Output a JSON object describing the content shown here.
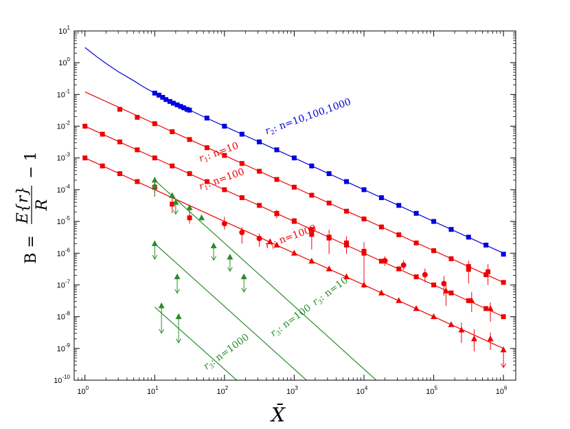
{
  "chart_data": {
    "type": "scatter",
    "title": "",
    "xlabel": "X̄",
    "ylabel": {
      "prefix": "B = ",
      "numerator": "E{r}",
      "denominator": "R",
      "suffix": "− 1"
    },
    "xscale": "log",
    "yscale": "log",
    "xlim": [
      0.7,
      1500000
    ],
    "ylim": [
      1e-10,
      10
    ],
    "x_ticks": [
      {
        "value": 1,
        "base": "10",
        "exp": "0"
      },
      {
        "value": 10,
        "base": "10",
        "exp": "1"
      },
      {
        "value": 100,
        "base": "10",
        "exp": "2"
      },
      {
        "value": 1000,
        "base": "10",
        "exp": "3"
      },
      {
        "value": 10000,
        "base": "10",
        "exp": "4"
      },
      {
        "value": 100000,
        "base": "10",
        "exp": "5"
      },
      {
        "value": 1000000,
        "base": "10",
        "exp": "6"
      }
    ],
    "y_ticks": [
      {
        "value": 1e-10,
        "base": "10",
        "exp": "-10"
      },
      {
        "value": 1e-09,
        "base": "10",
        "exp": "-9"
      },
      {
        "value": 1e-08,
        "base": "10",
        "exp": "-8"
      },
      {
        "value": 1e-07,
        "base": "10",
        "exp": "-7"
      },
      {
        "value": 1e-06,
        "base": "10",
        "exp": "-6"
      },
      {
        "value": 1e-05,
        "base": "10",
        "exp": "-5"
      },
      {
        "value": 0.0001,
        "base": "10",
        "exp": "-4"
      },
      {
        "value": 0.001,
        "base": "10",
        "exp": "-3"
      },
      {
        "value": 0.01,
        "base": "10",
        "exp": "-2"
      },
      {
        "value": 0.1,
        "base": "10",
        "exp": "-1"
      },
      {
        "value": 1,
        "base": "10",
        "exp": "0"
      },
      {
        "value": 10,
        "base": "10",
        "exp": "1"
      }
    ],
    "colors": {
      "blue": "#0000dd",
      "red": "#ee0000",
      "green": "#2a8c2a"
    },
    "series": [
      {
        "group": "r2",
        "color": "blue",
        "label": {
          "sym": "r",
          "sub": "2",
          "text": ": n=10,100,1000",
          "x": 400,
          "y": 0.0055,
          "angle": -19.5
        },
        "lines": [
          {
            "points": [
              [
                1,
                3.0
              ],
              [
                1.5,
                1.5
              ],
              [
                2,
                0.95
              ],
              [
                3,
                0.52
              ],
              [
                5,
                0.27
              ],
              [
                7,
                0.17
              ],
              [
                10,
                0.11
              ],
              [
                20,
                0.052
              ],
              [
                50,
                0.02
              ],
              [
                100,
                0.01
              ],
              [
                1000,
                0.001
              ],
              [
                10000,
                0.0001
              ],
              [
                100000,
                1e-05
              ],
              [
                1000000,
                1e-06
              ]
            ]
          }
        ],
        "markers": {
          "shape": "square",
          "points": [
            [
              10,
              0.11
            ],
            [
              11.5,
              0.095
            ],
            [
              13,
              0.081
            ],
            [
              14.5,
              0.069
            ],
            [
              16.5,
              0.06
            ],
            [
              18.5,
              0.053
            ],
            [
              21,
              0.047
            ],
            [
              23.5,
              0.042
            ],
            [
              26,
              0.038
            ],
            [
              29,
              0.034
            ],
            [
              31.5,
              0.032
            ],
            [
              56,
              0.018
            ],
            [
              100,
              0.01
            ],
            [
              178,
              0.0056
            ],
            [
              316,
              0.0032
            ],
            [
              562,
              0.0018
            ],
            [
              1000,
              0.001
            ],
            [
              1780,
              0.00056
            ],
            [
              3160,
              0.00032
            ],
            [
              5620,
              0.00018
            ],
            [
              10000,
              0.0001
            ],
            [
              17800,
              5.6e-05
            ],
            [
              31600,
              3.2e-05
            ],
            [
              56200,
              1.8e-05
            ],
            [
              100000,
              1e-05
            ],
            [
              178000,
              5.6e-06
            ],
            [
              316000,
              3.2e-06
            ],
            [
              562000,
              1.8e-06
            ],
            [
              1000000,
              9.3e-07
            ]
          ]
        }
      },
      {
        "group": "r1_n10",
        "color": "red",
        "label": {
          "sym": "r",
          "sub": "1",
          "text": ": n=10",
          "x": 45,
          "y": 0.00075,
          "angle": -19.5
        },
        "lines": [
          {
            "points": [
              [
                1,
                0.12
              ],
              [
                1000000,
                1.2e-07
              ]
            ]
          }
        ],
        "markers": {
          "shape": "square",
          "points": [
            [
              3.16,
              0.034
            ],
            [
              5.62,
              0.019
            ],
            [
              10,
              0.012
            ],
            [
              17.8,
              0.0067
            ],
            [
              31.6,
              0.0038
            ],
            [
              56.2,
              0.0021
            ],
            [
              100,
              0.0012
            ],
            [
              178,
              0.00067
            ],
            [
              316,
              0.00038
            ],
            [
              562,
              0.00021
            ],
            [
              1000,
              0.00012
            ],
            [
              1780,
              6.7e-05
            ],
            [
              3160,
              3.8e-05
            ],
            [
              5620,
              2.1e-05
            ],
            [
              10000,
              1.2e-05
            ],
            [
              17800,
              6.7e-06
            ],
            [
              31600,
              3.8e-06
            ],
            [
              56200,
              2.1e-06
            ],
            [
              100000,
              1.2e-06
            ],
            [
              178000,
              6.7e-07
            ],
            [
              316000,
              3.8e-07
            ],
            [
              562000,
              2.1e-07
            ],
            [
              1000000,
              1.2e-07
            ]
          ]
        }
      },
      {
        "group": "r1_n100",
        "color": "red",
        "label": {
          "sym": "r",
          "sub": "1",
          "text": ": n=100",
          "x": 45,
          "y": 9.8e-05,
          "angle": -19.5
        },
        "lines": [
          {
            "points": [
              [
                1,
                0.01
              ],
              [
                1000000,
                1e-08
              ]
            ]
          }
        ],
        "markers": {
          "shape": "square",
          "points": [
            [
              1,
              0.01
            ],
            [
              1.78,
              0.0056
            ],
            [
              3.16,
              0.0032
            ],
            [
              5.62,
              0.0018
            ],
            [
              10,
              0.001
            ],
            [
              17.8,
              0.00056
            ],
            [
              31.6,
              0.00032
            ],
            [
              56.2,
              0.00018
            ],
            [
              100,
              0.0001
            ],
            [
              178,
              5.6e-05
            ],
            [
              316,
              3.2e-05
            ],
            [
              562,
              1.8e-05
            ],
            [
              1000,
              1e-05
            ],
            [
              1780,
              5.6e-06
            ],
            [
              3160,
              3.2e-06
            ],
            [
              5620,
              1.8e-06
            ],
            [
              10000,
              1e-06
            ],
            [
              17800,
              5.6e-07
            ],
            [
              31600,
              3.2e-07
            ],
            [
              56200,
              1.8e-07
            ],
            [
              100000,
              1e-07
            ],
            [
              178000,
              5.6e-08
            ],
            [
              316000,
              3.2e-08
            ],
            [
              562000,
              1.8e-08
            ],
            [
              1000000,
              1e-08
            ]
          ]
        }
      },
      {
        "group": "r1_n1000",
        "color": "red",
        "label": {
          "sym": "r",
          "sub": "1",
          "text": ": n=1000",
          "x": 400,
          "y": 1.4e-06,
          "angle": -19.5
        },
        "lines": [
          {
            "points": [
              [
                1,
                0.001
              ],
              [
                1000000,
                1e-09
              ]
            ]
          }
        ],
        "markers": {
          "shape": "square",
          "points": [
            [
              1,
              0.001
            ],
            [
              1.78,
              0.00056
            ],
            [
              3.16,
              0.00032
            ],
            [
              5.62,
              0.00018
            ]
          ]
        },
        "markers_triangle": {
          "shape": "triangle",
          "points": [
            [
              450,
              2.3e-06
            ],
            [
              562,
              1.8e-06
            ],
            [
              1000,
              1e-06
            ],
            [
              1780,
              5.6e-07
            ],
            [
              3160,
              3.2e-07
            ],
            [
              5620,
              1.8e-07
            ],
            [
              10000,
              1e-07
            ],
            [
              17800,
              5.6e-08
            ],
            [
              31600,
              3.2e-08
            ],
            [
              56200,
              1.8e-08
            ],
            [
              100000,
              1e-08
            ],
            [
              178000,
              5.6e-09
            ]
          ]
        },
        "error_points": [
          {
            "x": 10,
            "y": 0.00012,
            "shape": "square",
            "lo": 6e-05,
            "hi": 0.00021
          },
          {
            "x": 17.8,
            "y": 3.5e-05,
            "shape": "square",
            "lo": 1.8e-05,
            "hi": 6e-05
          },
          {
            "x": 31.6,
            "y": 1.3e-05,
            "shape": "square",
            "lo": 8.5e-06,
            "hi": 2.3e-05
          },
          {
            "x": 100,
            "y": 8.5e-06,
            "shape": "circle",
            "lo": 5.5e-06,
            "hi": 1.4e-05
          },
          {
            "x": 178,
            "y": 4.5e-06,
            "shape": "circle",
            "lo": 2e-06,
            "hi": 6.5e-06
          },
          {
            "x": 316,
            "y": 2.9e-06,
            "shape": "circle",
            "lo": 1.6e-06,
            "hi": 4.2e-06
          },
          {
            "x": 562,
            "y": 1.75e-05,
            "shape": "square",
            "lo": 1.25e-05,
            "hi": 2.3e-05
          },
          {
            "x": 1000,
            "y": 1.05e-05,
            "shape": "square",
            "lo": 8.5e-06,
            "hi": 1.25e-05
          },
          {
            "x": 1780,
            "y": 3.9e-06,
            "shape": "square",
            "lo": 1.3e-06,
            "hi": 5.5e-06
          },
          {
            "x": 3160,
            "y": 3e-06,
            "shape": "square",
            "lo": 9.5e-07,
            "hi": 5.5e-06
          },
          {
            "x": 5620,
            "y": 2.1e-06,
            "shape": "square",
            "lo": 9.5e-07,
            "hi": 3.4e-06
          },
          {
            "x": 10000,
            "y": 1.15e-06,
            "shape": "square",
            "lo": 8e-08,
            "hi": 2.2e-06
          },
          {
            "x": 20000,
            "y": 5.8e-07,
            "shape": "circle",
            "lo": 4e-07,
            "hi": 8e-07
          },
          {
            "x": 37000,
            "y": 4.2e-07,
            "shape": "circle",
            "lo": 3e-07,
            "hi": 6e-07
          },
          {
            "x": 75000,
            "y": 2.1e-07,
            "shape": "circle",
            "lo": 1.2e-07,
            "hi": 3.3e-07
          },
          {
            "x": 140000,
            "y": 1.1e-07,
            "shape": "circle",
            "lo": 4.5e-08,
            "hi": 1.9e-07
          },
          {
            "x": 150000,
            "y": 6.5e-08,
            "shape": "triangle",
            "lo": 2.2e-08,
            "hi": 1e-07
          },
          {
            "x": 316000,
            "y": 3.1e-07,
            "shape": "square",
            "lo": 1.1e-07,
            "hi": 5.8e-07
          },
          {
            "x": 350000,
            "y": 3.2e-08,
            "shape": "triangle",
            "lo": 1.4e-08,
            "hi": 6e-08
          },
          {
            "x": 600000,
            "y": 2.6e-07,
            "shape": "square",
            "lo": 1e-07,
            "hi": 4.5e-07
          },
          {
            "x": 650000,
            "y": 1.8e-08,
            "shape": "triangle",
            "lo": 7e-09,
            "hi": 2.8e-08
          },
          {
            "x": 250000,
            "y": 3.8e-09,
            "shape": "triangle",
            "lo": 1.5e-09,
            "hi": 6.5e-09
          },
          {
            "x": 380000,
            "y": 2e-09,
            "shape": "triangle",
            "lo": 8e-10,
            "hi": 4e-09
          },
          {
            "x": 650000,
            "y": 2e-09,
            "shape": "triangle",
            "lo": 9e-10,
            "hi": 3.2e-09
          }
        ],
        "upper_limits": [
          {
            "x": 1000000,
            "y": 9e-10,
            "to": 2.5e-10
          }
        ]
      },
      {
        "group": "r3_n10",
        "color": "green",
        "label": {
          "sym": "r",
          "sub": "3",
          "text": ": n=10",
          "x": 2000,
          "y": 2.2e-08,
          "angle": -36
        },
        "lines": [
          {
            "points": [
              [
                10,
                0.0002
              ],
              [
                15000,
                1e-10
              ]
            ]
          }
        ],
        "markers": {
          "shape": "triangle",
          "points": [
            [
              10,
              0.0002
            ],
            [
              17.8,
              6.5e-05
            ],
            [
              31.6,
              2.7e-05
            ],
            [
              47,
              1.3e-05
            ]
          ]
        },
        "error_points": [
          {
            "x": 10,
            "y": 0.00013,
            "shape": "triangle",
            "lo": 6.8e-05,
            "hi": 0.00016
          }
        ],
        "upper_limits": [
          {
            "x": 20,
            "y": 4e-05,
            "to": 1.7e-05
          },
          {
            "x": 70,
            "y": 1.7e-06,
            "to": 6e-07
          },
          {
            "x": 120,
            "y": 7.5e-07,
            "to": 2.7e-07
          },
          {
            "x": 190,
            "y": 1.8e-07,
            "to": 6e-08
          }
        ]
      },
      {
        "group": "r3_n100",
        "color": "green",
        "label": {
          "sym": "r",
          "sub": "3",
          "text": ": n=100",
          "x": 500,
          "y": 2.3e-09,
          "angle": -36
        },
        "lines": [
          {
            "points": [
              [
                10,
                2e-06
              ],
              [
                1500,
                1e-10
              ]
            ]
          }
        ],
        "upper_limits": [
          {
            "x": 10,
            "y": 2e-06,
            "to": 6.5e-07
          },
          {
            "x": 21,
            "y": 1.8e-07,
            "to": 5.5e-08
          }
        ]
      },
      {
        "group": "r3_n1000",
        "color": "green",
        "label": {
          "sym": "r",
          "sub": "3",
          "text": ": n=1000",
          "x": 55,
          "y": 2.1e-10,
          "angle": -36
        },
        "lines": [
          {
            "points": [
              [
                10,
                2e-08
              ],
              [
                150,
                1e-10
              ]
            ]
          }
        ],
        "upper_limits": [
          {
            "x": 12.5,
            "y": 2.2e-08,
            "to": 3e-09
          },
          {
            "x": 22,
            "y": 1e-08,
            "to": 1.5e-09
          }
        ]
      }
    ]
  }
}
